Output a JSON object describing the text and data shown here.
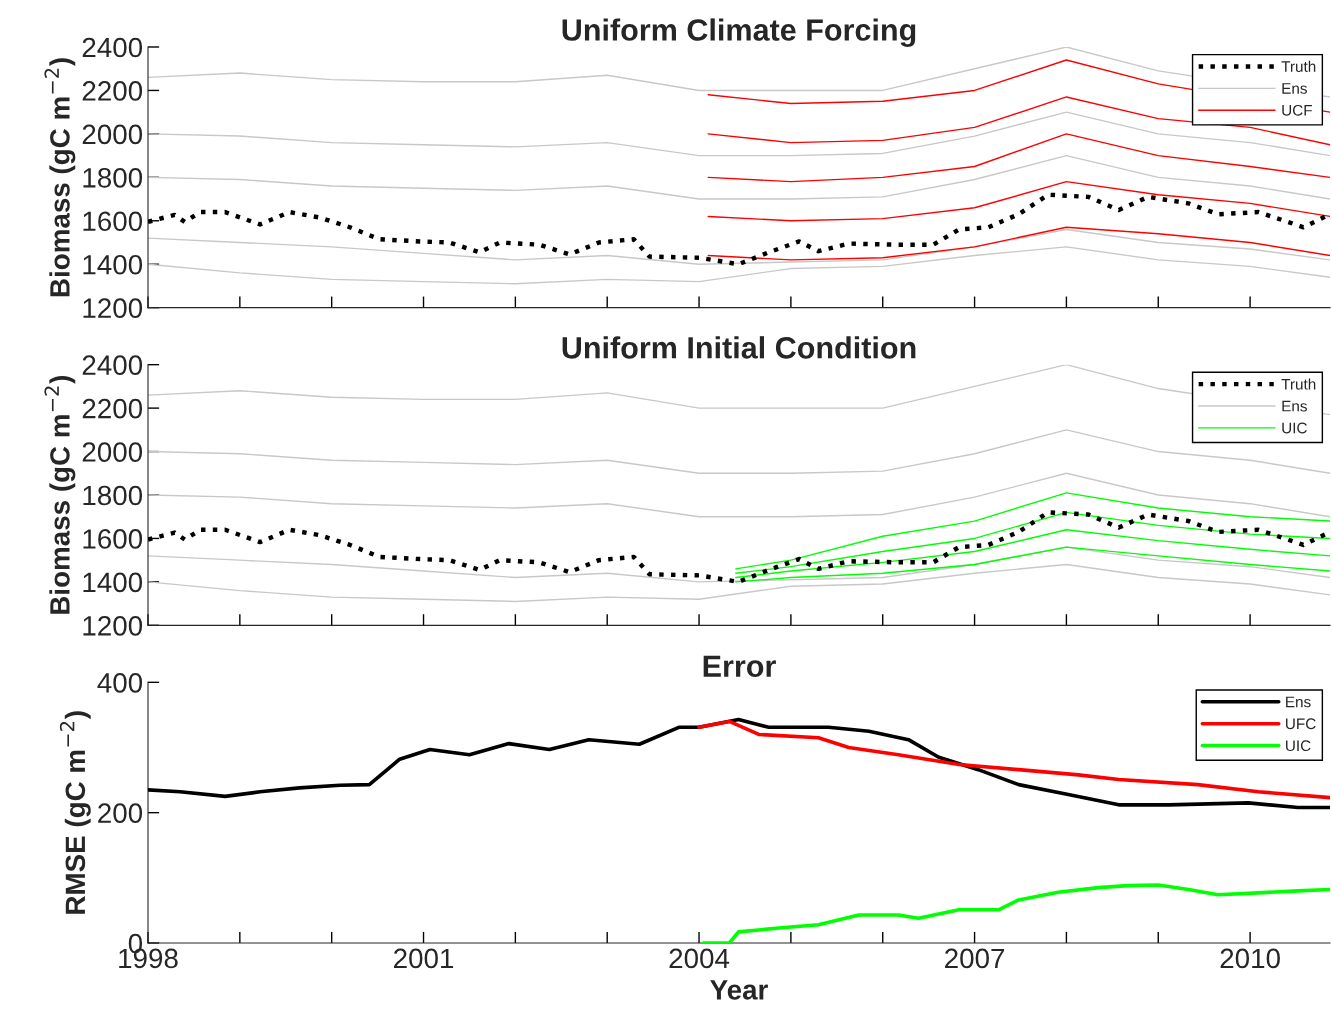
{
  "chart_data": [
    {
      "type": "line",
      "title": "Uniform Climate Forcing",
      "ylabel": "Biomass (gC m$^{−2}$)",
      "xlim": [
        1998,
        2010.87
      ],
      "ylim": [
        1200,
        2400
      ],
      "yticks": [
        1200,
        1400,
        1600,
        1800,
        2000,
        2200,
        2400
      ],
      "xticks": [
        {
          "value": 1998,
          "label": null
        },
        {
          "value": 1999,
          "label": null
        },
        {
          "value": 2000,
          "label": null
        },
        {
          "value": 2001,
          "label": null
        },
        {
          "value": 2002,
          "label": null
        },
        {
          "value": 2003,
          "label": null
        },
        {
          "value": 2004,
          "label": null
        },
        {
          "value": 2005,
          "label": null
        },
        {
          "value": 2006,
          "label": null
        },
        {
          "value": 2007,
          "label": null
        },
        {
          "value": 2008,
          "label": null
        },
        {
          "value": 2009,
          "label": null
        },
        {
          "value": 2010,
          "label": null
        }
      ],
      "tick_labels": "y",
      "grid": false,
      "legend": "top right",
      "series": [
        {
          "name": "Truth",
          "color": "#000000",
          "line_style": "dotted",
          "x": [
            1998,
            1998.29,
            1998.4,
            1998.57,
            1998.84,
            1999.22,
            1999.54,
            1999.87,
            2000.2,
            2000.52,
            2000.96,
            2001.28,
            2001.61,
            2001.83,
            2002.26,
            2002.59,
            2002.91,
            2003.29,
            2003.46,
            2004,
            2004.43,
            2004.76,
            2005.09,
            2005.3,
            2005.63,
            2006.17,
            2006.55,
            2006.83,
            2007.15,
            2007.48,
            2007.8,
            2008.24,
            2008.57,
            2008.89,
            2009.33,
            2009.65,
            2010.09,
            2010.41,
            2010.58,
            2010.87
          ],
          "values": [
            1595,
            1627,
            1595,
            1640,
            1640,
            1583,
            1640,
            1615,
            1570,
            1515,
            1505,
            1500,
            1455,
            1500,
            1490,
            1445,
            1500,
            1515,
            1435,
            1430,
            1400,
            1455,
            1505,
            1460,
            1495,
            1490,
            1490,
            1560,
            1570,
            1630,
            1720,
            1710,
            1650,
            1710,
            1680,
            1630,
            1640,
            1595,
            1570,
            1630
          ]
        },
        {
          "name": "Ens",
          "color": "#c8c8c8",
          "x": [
            1998,
            1999,
            2000,
            2001,
            2002,
            2003,
            2004,
            2005,
            2006,
            2007,
            2008,
            2009,
            2010,
            2010.87
          ],
          "values": [
            2260,
            2280,
            2250,
            2240,
            2240,
            2270,
            2200,
            2200,
            2200,
            2300,
            2400,
            2290,
            null,
            2170
          ]
        },
        {
          "color": "#c8c8c8",
          "x": [
            1998,
            1999,
            2000,
            2001,
            2002,
            2003,
            2004,
            2005,
            2006,
            2007,
            2008,
            2009,
            2010,
            2010.87
          ],
          "values": [
            2000,
            1990,
            1960,
            1950,
            1940,
            1960,
            1900,
            1900,
            1910,
            1990,
            2100,
            2000,
            1960,
            1900
          ]
        },
        {
          "color": "#c8c8c8",
          "x": [
            1998,
            1999,
            2000,
            2001,
            2002,
            2003,
            2004,
            2005,
            2006,
            2007,
            2008,
            2009,
            2010,
            2010.87
          ],
          "values": [
            1800,
            1790,
            1760,
            1750,
            1740,
            1760,
            1700,
            1700,
            1710,
            1790,
            1900,
            1800,
            1760,
            1700
          ]
        },
        {
          "color": "#c8c8c8",
          "x": [
            1998,
            1999,
            2000,
            2001,
            2002,
            2003,
            2004,
            2005,
            2006,
            2007,
            2008,
            2009,
            2010,
            2010.87
          ],
          "values": [
            1520,
            1500,
            1480,
            1450,
            1420,
            1440,
            1400,
            1410,
            1420,
            1480,
            1560,
            1500,
            1470,
            1420
          ]
        },
        {
          "color": "#c8c8c8",
          "x": [
            1998,
            1999,
            2000,
            2001,
            2002,
            2003,
            2004,
            2005,
            2006,
            2007,
            2008,
            2009,
            2010,
            2010.87
          ],
          "values": [
            1400,
            1360,
            1330,
            1320,
            1310,
            1330,
            1320,
            1380,
            1390,
            1440,
            1480,
            1420,
            1390,
            1340
          ]
        },
        {
          "name": "UCF",
          "color": "#ff0000",
          "x": [
            2004.1,
            2005,
            2006,
            2007,
            2008,
            2009,
            2010,
            2010.87
          ],
          "values": [
            2180,
            2140,
            2150,
            2200,
            2340,
            2230,
            null,
            2100
          ]
        },
        {
          "color": "#ff0000",
          "x": [
            2004.1,
            2005,
            2006,
            2007,
            2008,
            2009,
            2010,
            2010.87
          ],
          "values": [
            2000,
            1960,
            1970,
            2030,
            2170,
            2070,
            2030,
            1950
          ]
        },
        {
          "color": "#ff0000",
          "x": [
            2004.1,
            2005,
            2006,
            2007,
            2008,
            2009,
            2010,
            2010.87
          ],
          "values": [
            1800,
            1780,
            1800,
            1850,
            2000,
            1900,
            1850,
            1800
          ]
        },
        {
          "color": "#ff0000",
          "x": [
            2004.1,
            2005,
            2006,
            2007,
            2008,
            2009,
            2010,
            2010.87
          ],
          "values": [
            1620,
            1600,
            1610,
            1660,
            1780,
            1720,
            1680,
            1620
          ]
        },
        {
          "color": "#ff0000",
          "x": [
            2004.1,
            2005,
            2006,
            2007,
            2008,
            2009,
            2010,
            2010.87
          ],
          "values": [
            1440,
            1420,
            1430,
            1480,
            1570,
            1540,
            1500,
            1440
          ]
        }
      ]
    },
    {
      "type": "line",
      "title": "Uniform Initial Condition",
      "ylabel": "Biomass (gC m$^{−2}$)",
      "xlim": [
        1998,
        2010.87
      ],
      "ylim": [
        1200,
        2400
      ],
      "yticks": [
        1200,
        1400,
        1600,
        1800,
        2000,
        2200,
        2400
      ],
      "xticks": [
        {
          "value": 1998,
          "label": null
        },
        {
          "value": 1999,
          "label": null
        },
        {
          "value": 2000,
          "label": null
        },
        {
          "value": 2001,
          "label": null
        },
        {
          "value": 2002,
          "label": null
        },
        {
          "value": 2003,
          "label": null
        },
        {
          "value": 2004,
          "label": null
        },
        {
          "value": 2005,
          "label": null
        },
        {
          "value": 2006,
          "label": null
        },
        {
          "value": 2007,
          "label": null
        },
        {
          "value": 2008,
          "label": null
        },
        {
          "value": 2009,
          "label": null
        },
        {
          "value": 2010,
          "label": null
        }
      ],
      "tick_labels": "y",
      "grid": false,
      "legend": "top right",
      "series": [
        {
          "name": "Truth",
          "color": "#000000",
          "line_style": "dotted",
          "x": [
            1998,
            1998.29,
            1998.4,
            1998.57,
            1998.84,
            1999.22,
            1999.54,
            1999.87,
            2000.2,
            2000.52,
            2000.96,
            2001.28,
            2001.61,
            2001.83,
            2002.26,
            2002.59,
            2002.91,
            2003.29,
            2003.46,
            2004,
            2004.43,
            2004.76,
            2005.09,
            2005.3,
            2005.63,
            2006.17,
            2006.55,
            2006.83,
            2007.15,
            2007.48,
            2007.8,
            2008.24,
            2008.57,
            2008.89,
            2009.33,
            2009.65,
            2010.09,
            2010.41,
            2010.58,
            2010.87
          ],
          "values": [
            1595,
            1627,
            1595,
            1640,
            1640,
            1583,
            1640,
            1615,
            1570,
            1515,
            1505,
            1500,
            1455,
            1500,
            1490,
            1445,
            1500,
            1515,
            1435,
            1430,
            1400,
            1455,
            1505,
            1460,
            1495,
            1490,
            1490,
            1560,
            1570,
            1630,
            1720,
            1710,
            1650,
            1710,
            1680,
            1630,
            1640,
            1595,
            1570,
            1630
          ]
        },
        {
          "name": "Ens",
          "color": "#c8c8c8",
          "x": [
            1998,
            1999,
            2000,
            2001,
            2002,
            2003,
            2004,
            2005,
            2006,
            2007,
            2008,
            2009,
            2010,
            2010.87
          ],
          "values": [
            2260,
            2280,
            2250,
            2240,
            2240,
            2270,
            2200,
            2200,
            2200,
            2300,
            2400,
            2290,
            null,
            2170
          ]
        },
        {
          "color": "#c8c8c8",
          "x": [
            1998,
            1999,
            2000,
            2001,
            2002,
            2003,
            2004,
            2005,
            2006,
            2007,
            2008,
            2009,
            2010,
            2010.87
          ],
          "values": [
            2000,
            1990,
            1960,
            1950,
            1940,
            1960,
            1900,
            1900,
            1910,
            1990,
            2100,
            2000,
            1960,
            1900
          ]
        },
        {
          "color": "#c8c8c8",
          "x": [
            1998,
            1999,
            2000,
            2001,
            2002,
            2003,
            2004,
            2005,
            2006,
            2007,
            2008,
            2009,
            2010,
            2010.87
          ],
          "values": [
            1800,
            1790,
            1760,
            1750,
            1740,
            1760,
            1700,
            1700,
            1710,
            1790,
            1900,
            1800,
            1760,
            1700
          ]
        },
        {
          "color": "#c8c8c8",
          "x": [
            1998,
            1999,
            2000,
            2001,
            2002,
            2003,
            2004,
            2005,
            2006,
            2007,
            2008,
            2009,
            2010,
            2010.87
          ],
          "values": [
            1520,
            1500,
            1480,
            1450,
            1420,
            1440,
            1400,
            1410,
            1420,
            1480,
            1560,
            1500,
            1470,
            1420
          ]
        },
        {
          "color": "#c8c8c8",
          "x": [
            1998,
            1999,
            2000,
            2001,
            2002,
            2003,
            2004,
            2005,
            2006,
            2007,
            2008,
            2009,
            2010,
            2010.87
          ],
          "values": [
            1400,
            1360,
            1330,
            1320,
            1310,
            1330,
            1320,
            1380,
            1390,
            1440,
            1480,
            1420,
            1390,
            1340
          ]
        },
        {
          "name": "UIC",
          "color": "#00ff00",
          "x": [
            2004.4,
            2005,
            2006,
            2007,
            2008,
            2009,
            2010,
            2010.87
          ],
          "values": [
            1460,
            1500,
            1610,
            1680,
            1810,
            1740,
            1700,
            1680
          ]
        },
        {
          "color": "#00ff00",
          "x": [
            2004.4,
            2005,
            2006,
            2007,
            2008,
            2009,
            2010,
            2010.87
          ],
          "values": [
            1440,
            1470,
            1540,
            1600,
            1720,
            1660,
            1620,
            1600
          ]
        },
        {
          "color": "#00ff00",
          "x": [
            2004.4,
            2005,
            2006,
            2007,
            2008,
            2009,
            2010,
            2010.87
          ],
          "values": [
            1420,
            1450,
            1490,
            1540,
            1640,
            1590,
            1550,
            1520
          ]
        },
        {
          "color": "#00ff00",
          "x": [
            2004.4,
            2005,
            2006,
            2007,
            2008,
            2009,
            2010,
            2010.87
          ],
          "values": [
            1400,
            1420,
            1440,
            1480,
            1560,
            1520,
            1480,
            1450
          ]
        }
      ]
    },
    {
      "type": "line",
      "title": "Error",
      "xlabel": "Year",
      "ylabel": "RMSE (gC m$^{−2}$)",
      "xlim": [
        1998,
        2010.87
      ],
      "ylim": [
        0,
        400
      ],
      "yticks": [
        0,
        200,
        400
      ],
      "xticks": [
        1998,
        {
          "value": 1999,
          "label": null
        },
        {
          "value": 2000,
          "label": null
        },
        2001,
        {
          "value": 2002,
          "label": null
        },
        {
          "value": 2003,
          "label": null
        },
        2004,
        {
          "value": 2005,
          "label": null
        },
        {
          "value": 2006,
          "label": null
        },
        2007,
        {
          "value": 2008,
          "label": null
        },
        {
          "value": 2009,
          "label": null
        },
        2010
      ],
      "grid": false,
      "legend": "top right",
      "series": [
        {
          "name": "Ens",
          "color": "#000000",
          "x": [
            1998,
            1998.35,
            1998.84,
            1999.22,
            1999.65,
            2000.09,
            2000.41,
            2000.74,
            2001.07,
            2001.5,
            2001.93,
            2002.37,
            2002.8,
            2003.35,
            2003.78,
            2004,
            2004.43,
            2004.76,
            2005.41,
            2005.85,
            2006.28,
            2006.61,
            2007.04,
            2007.48,
            2008.02,
            2008.57,
            2009.11,
            2009.98,
            2010.52,
            2010.87
          ],
          "values": [
            235,
            232,
            225,
            232,
            238,
            242,
            243,
            282,
            297,
            289,
            306,
            297,
            312,
            305,
            331,
            331,
            343,
            331,
            331,
            325,
            312,
            285,
            266,
            243,
            228,
            212,
            212,
            215,
            208,
            208
          ]
        },
        {
          "name": "UFC",
          "color": "#ff0000",
          "x": [
            2004,
            2004.33,
            2004.65,
            2005.3,
            2005.63,
            2006.17,
            2006.83,
            2007.48,
            2008.13,
            2008.57,
            2009.43,
            2010.09,
            2010.87
          ],
          "values": [
            331,
            340,
            320,
            315,
            300,
            289,
            274,
            266,
            258,
            251,
            243,
            232,
            223
          ]
        },
        {
          "name": "UIC",
          "color": "#00ff00",
          "x": [
            2004.05,
            2004.33,
            2004.43,
            2004.87,
            2005.3,
            2005.74,
            2006.17,
            2006.39,
            2006.83,
            2007.26,
            2007.48,
            2007.91,
            2008.35,
            2008.67,
            2009.0,
            2009.33,
            2009.65,
            2010.09,
            2010.52,
            2010.87
          ],
          "values": [
            0,
            0,
            17,
            23,
            28,
            43,
            43,
            38,
            51,
            51,
            66,
            78,
            85,
            88,
            89,
            82,
            74,
            77,
            80,
            82
          ]
        }
      ]
    }
  ]
}
